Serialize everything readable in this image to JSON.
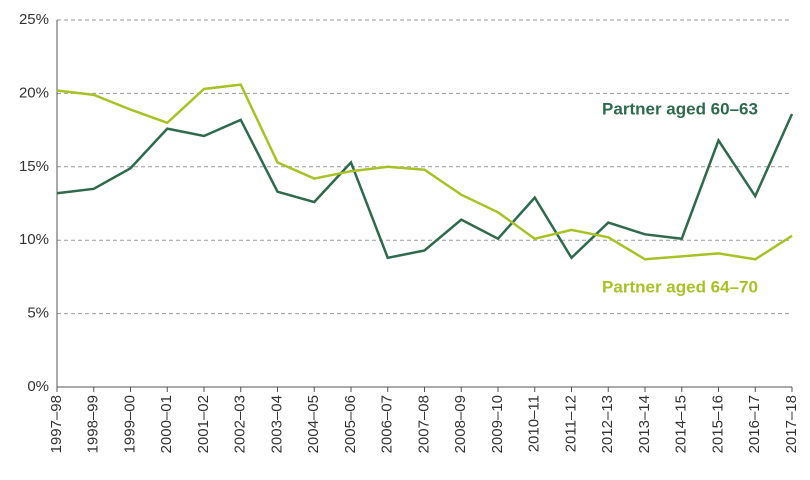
{
  "chart_data": {
    "type": "line",
    "categories": [
      "1997–98",
      "1998–99",
      "1999–00",
      "2000–01",
      "2001–02",
      "2002–03",
      "2003–04",
      "2004–05",
      "2005–06",
      "2006–07",
      "2007–08",
      "2008–09",
      "2009–10",
      "2010–11",
      "2011–12",
      "2012–13",
      "2013–14",
      "2014–15",
      "2015–16",
      "2016–17",
      "2017–18"
    ],
    "series": [
      {
        "name": "Partner aged 60–63",
        "color": "#2f6a4d",
        "values": [
          13.2,
          13.5,
          14.9,
          17.6,
          17.1,
          18.2,
          13.3,
          12.6,
          15.3,
          8.8,
          9.3,
          11.4,
          10.1,
          12.9,
          8.8,
          11.2,
          10.4,
          10.1,
          16.8,
          13.0,
          18.6
        ]
      },
      {
        "name": "Partner aged 64–70",
        "color": "#a8c225",
        "values": [
          20.2,
          19.9,
          18.9,
          18.0,
          20.3,
          20.6,
          15.3,
          14.2,
          14.7,
          15.0,
          14.8,
          13.1,
          11.9,
          10.1,
          10.7,
          10.2,
          8.7,
          8.9,
          9.1,
          8.7,
          10.3
        ]
      }
    ],
    "ylim": [
      0,
      25
    ],
    "yticks": [
      {
        "value": 0,
        "label": "0%"
      },
      {
        "value": 5,
        "label": "5%"
      },
      {
        "value": 10,
        "label": "10%"
      },
      {
        "value": 15,
        "label": "15%"
      },
      {
        "value": 20,
        "label": "20%"
      },
      {
        "value": 25,
        "label": "25%"
      }
    ],
    "grid": true
  }
}
